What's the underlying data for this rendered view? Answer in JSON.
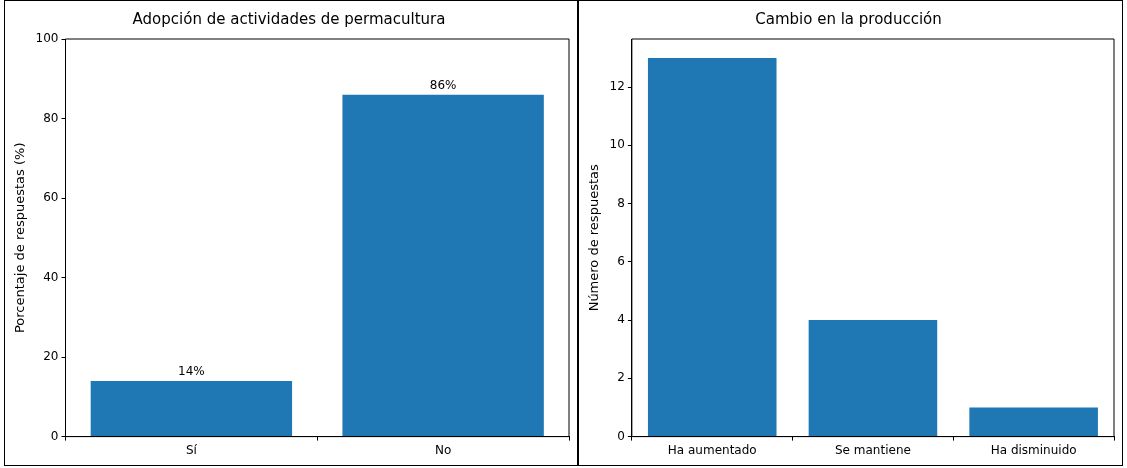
{
  "chart_data": [
    {
      "type": "bar",
      "title": "Adopción de actividades de permacultura",
      "ylabel": "Porcentaje de respuestas (%)",
      "categories": [
        "Sí",
        "No"
      ],
      "values": [
        14,
        86
      ],
      "value_labels": [
        "14%",
        "86%"
      ],
      "color": "#1f77b4",
      "ylim": [
        0,
        100
      ],
      "yticks": [
        0,
        20,
        40,
        60,
        80,
        100
      ],
      "grid": false,
      "legend": false
    },
    {
      "type": "bar",
      "title": "Cambio en la producción",
      "ylabel": "Número de respuestas",
      "categories": [
        "Ha aumentado",
        "Se mantiene",
        "Ha disminuido"
      ],
      "values": [
        13,
        4,
        1
      ],
      "color": "#1f77b4",
      "ylim": [
        0,
        13.65
      ],
      "yticks": [
        0,
        2,
        4,
        6,
        8,
        10,
        12
      ],
      "grid": false,
      "legend": false
    }
  ]
}
